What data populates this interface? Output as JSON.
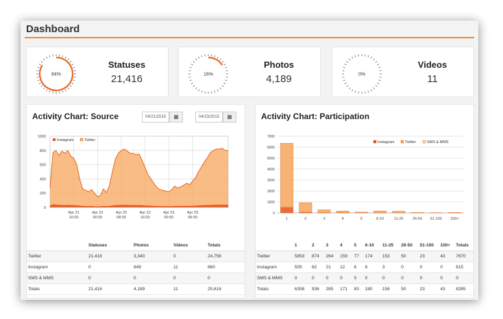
{
  "page": {
    "title": "Dashboard"
  },
  "stats": [
    {
      "label": "Statuses",
      "value": "21,416",
      "pct_label": "84%",
      "pct": 0.84
    },
    {
      "label": "Photos",
      "value": "4,189",
      "pct_label": "16%",
      "pct": 0.16
    },
    {
      "label": "Videos",
      "value": "11",
      "pct_label": "0%",
      "pct": 0.0
    }
  ],
  "colors": {
    "accent": "#e8661f",
    "twitter": "#f5a65b",
    "instagram": "#e0531c",
    "sms": "#fbd3ad",
    "rule": "#e8892e"
  },
  "source_panel": {
    "title": "Activity Chart: Source",
    "date_from": "04/21/2015",
    "date_to": "04/23/2015",
    "calendar_icon": "calendar-icon",
    "table": {
      "headers": [
        "",
        "Statuses",
        "Photos",
        "Videos",
        "Totals"
      ],
      "rows": [
        [
          "Twitter",
          "21,416",
          "3,340",
          "0",
          "24,756"
        ],
        [
          "Instagram",
          "0",
          "849",
          "11",
          "860"
        ],
        [
          "SMS & MMS",
          "0",
          "0",
          "0",
          "0"
        ],
        [
          "Totals",
          "21,416",
          "4,189",
          "11",
          "25,616"
        ]
      ]
    }
  },
  "participation_panel": {
    "title": "Activity Chart: Participation",
    "table": {
      "headers": [
        "",
        "1",
        "2",
        "3",
        "4",
        "5",
        "6-10",
        "11-25",
        "26-50",
        "51-100",
        "100+",
        "Totals"
      ],
      "rows": [
        [
          "Twitter",
          "5853",
          "874",
          "264",
          "159",
          "77",
          "174",
          "153",
          "50",
          "23",
          "43",
          "7670"
        ],
        [
          "Instagram",
          "505",
          "62",
          "21",
          "12",
          "6",
          "6",
          "3",
          "0",
          "0",
          "0",
          "615"
        ],
        [
          "SMS & MMS",
          "0",
          "0",
          "0",
          "0",
          "0",
          "0",
          "0",
          "0",
          "0",
          "0",
          "0"
        ],
        [
          "Totals",
          "6358",
          "936",
          "285",
          "171",
          "83",
          "180",
          "156",
          "50",
          "23",
          "43",
          "8285"
        ]
      ]
    }
  },
  "chart_data": [
    {
      "type": "area",
      "legend": [
        "Instagram",
        "Twitter"
      ],
      "legend_position": "top-left",
      "ylim": [
        0,
        1000
      ],
      "yticks": [
        0,
        200,
        400,
        600,
        800,
        1000
      ],
      "xlim": [
        0,
        60
      ],
      "xticks": [
        {
          "x": 8,
          "label": [
            "Apr 21",
            "16:00"
          ]
        },
        {
          "x": 16,
          "label": [
            "Apr 22",
            "00:00"
          ]
        },
        {
          "x": 24,
          "label": [
            "Apr 22",
            "08:00"
          ]
        },
        {
          "x": 32,
          "label": [
            "Apr 22",
            "16:00"
          ]
        },
        {
          "x": 40,
          "label": [
            "Apr 23",
            "00:00"
          ]
        },
        {
          "x": 48,
          "label": [
            "Apr 23",
            "08:00"
          ]
        }
      ],
      "series": [
        {
          "name": "Twitter",
          "values": [
            280,
            770,
            800,
            730,
            790,
            760,
            800,
            720,
            690,
            600,
            400,
            260,
            240,
            220,
            250,
            200,
            150,
            170,
            260,
            210,
            310,
            500,
            680,
            760,
            800,
            820,
            790,
            760,
            760,
            740,
            750,
            660,
            560,
            460,
            400,
            340,
            280,
            250,
            240,
            230,
            220,
            250,
            300,
            270,
            290,
            310,
            340,
            320,
            370,
            420,
            500,
            570,
            640,
            700,
            770,
            800,
            820,
            820,
            830,
            800,
            800
          ]
        },
        {
          "name": "Instagram",
          "values": [
            20,
            40,
            35,
            30,
            30,
            25,
            30,
            28,
            26,
            24,
            18,
            15,
            12,
            12,
            14,
            10,
            8,
            10,
            14,
            12,
            15,
            20,
            26,
            28,
            30,
            32,
            30,
            28,
            28,
            27,
            28,
            25,
            22,
            20,
            18,
            15,
            13,
            12,
            12,
            11,
            10,
            12,
            14,
            13,
            14,
            15,
            16,
            15,
            17,
            19,
            22,
            24,
            26,
            28,
            30,
            32,
            33,
            33,
            34,
            32,
            32
          ]
        }
      ]
    },
    {
      "type": "bar",
      "stacked": true,
      "legend": [
        "Instagram",
        "Twitter",
        "SMS & MMS"
      ],
      "legend_position": "top-right",
      "categories": [
        "1",
        "2",
        "3",
        "4",
        "5",
        "6-10",
        "11-25",
        "26-50",
        "51-100",
        "100+"
      ],
      "ylim": [
        0,
        7000
      ],
      "yticks": [
        0,
        1000,
        2000,
        3000,
        4000,
        5000,
        6000,
        7000
      ],
      "series": [
        {
          "name": "Instagram",
          "values": [
            505,
            62,
            21,
            12,
            6,
            6,
            3,
            0,
            0,
            0
          ]
        },
        {
          "name": "Twitter",
          "values": [
            5853,
            874,
            264,
            159,
            77,
            174,
            153,
            50,
            23,
            43
          ]
        },
        {
          "name": "SMS & MMS",
          "values": [
            0,
            0,
            0,
            0,
            0,
            0,
            0,
            0,
            0,
            0
          ]
        }
      ]
    }
  ]
}
